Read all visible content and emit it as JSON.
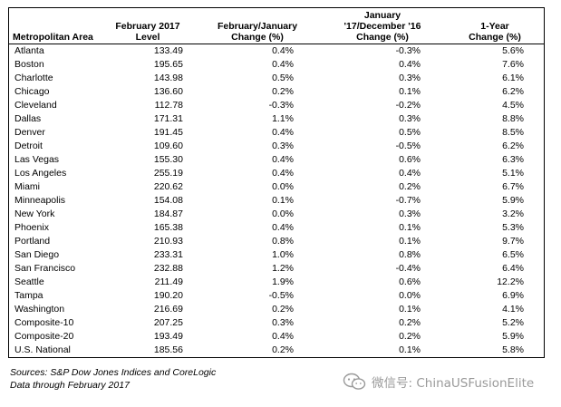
{
  "headers": {
    "area": "Metropolitan Area",
    "level_line1": "February 2017",
    "level_line2": "Level",
    "chg1_line1": "February/January",
    "chg1_line2": "Change (%)",
    "chg2_line0": "January",
    "chg2_line1": "'17/December '16",
    "chg2_line2": "Change (%)",
    "chg3_line1": "1-Year",
    "chg3_line2": "Change (%)"
  },
  "rows": [
    {
      "area": "Atlanta",
      "level": "133.49",
      "mom": "0.4%",
      "dec": "-0.3%",
      "yoy": "5.6%"
    },
    {
      "area": "Boston",
      "level": "195.65",
      "mom": "0.4%",
      "dec": "0.4%",
      "yoy": "7.6%"
    },
    {
      "area": "Charlotte",
      "level": "143.98",
      "mom": "0.5%",
      "dec": "0.3%",
      "yoy": "6.1%"
    },
    {
      "area": "Chicago",
      "level": "136.60",
      "mom": "0.2%",
      "dec": "0.1%",
      "yoy": "6.2%"
    },
    {
      "area": "Cleveland",
      "level": "112.78",
      "mom": "-0.3%",
      "dec": "-0.2%",
      "yoy": "4.5%"
    },
    {
      "area": "Dallas",
      "level": "171.31",
      "mom": "1.1%",
      "dec": "0.3%",
      "yoy": "8.8%"
    },
    {
      "area": "Denver",
      "level": "191.45",
      "mom": "0.4%",
      "dec": "0.5%",
      "yoy": "8.5%"
    },
    {
      "area": "Detroit",
      "level": "109.60",
      "mom": "0.3%",
      "dec": "-0.5%",
      "yoy": "6.2%"
    },
    {
      "area": "Las Vegas",
      "level": "155.30",
      "mom": "0.4%",
      "dec": "0.6%",
      "yoy": "6.3%"
    },
    {
      "area": "Los Angeles",
      "level": "255.19",
      "mom": "0.4%",
      "dec": "0.4%",
      "yoy": "5.1%"
    },
    {
      "area": "Miami",
      "level": "220.62",
      "mom": "0.0%",
      "dec": "0.2%",
      "yoy": "6.7%"
    },
    {
      "area": "Minneapolis",
      "level": "154.08",
      "mom": "0.1%",
      "dec": "-0.7%",
      "yoy": "5.9%"
    },
    {
      "area": "New York",
      "level": "184.87",
      "mom": "0.0%",
      "dec": "0.3%",
      "yoy": "3.2%"
    },
    {
      "area": "Phoenix",
      "level": "165.38",
      "mom": "0.4%",
      "dec": "0.1%",
      "yoy": "5.3%"
    },
    {
      "area": "Portland",
      "level": "210.93",
      "mom": "0.8%",
      "dec": "0.1%",
      "yoy": "9.7%"
    },
    {
      "area": "San Diego",
      "level": "233.31",
      "mom": "1.0%",
      "dec": "0.8%",
      "yoy": "6.5%"
    },
    {
      "area": "San Francisco",
      "level": "232.88",
      "mom": "1.2%",
      "dec": "-0.4%",
      "yoy": "6.4%"
    },
    {
      "area": "Seattle",
      "level": "211.49",
      "mom": "1.9%",
      "dec": "0.6%",
      "yoy": "12.2%"
    },
    {
      "area": "Tampa",
      "level": "190.20",
      "mom": "-0.5%",
      "dec": "0.0%",
      "yoy": "6.9%"
    },
    {
      "area": "Washington",
      "level": "216.69",
      "mom": "0.2%",
      "dec": "0.1%",
      "yoy": "4.1%"
    },
    {
      "area": "Composite-10",
      "level": "207.25",
      "mom": "0.3%",
      "dec": "0.2%",
      "yoy": "5.2%"
    },
    {
      "area": "Composite-20",
      "level": "193.49",
      "mom": "0.4%",
      "dec": "0.2%",
      "yoy": "5.9%"
    },
    {
      "area": "U.S. National",
      "level": "185.56",
      "mom": "0.2%",
      "dec": "0.1%",
      "yoy": "5.8%"
    }
  ],
  "footer": {
    "sources": "Sources: S&P Dow Jones Indices and CoreLogic",
    "through": "Data through February 2017"
  },
  "watermark": {
    "text": "微信号: ChinaUSFusionElite",
    "icon": "wechat-icon",
    "color": "#9a9a9a"
  }
}
